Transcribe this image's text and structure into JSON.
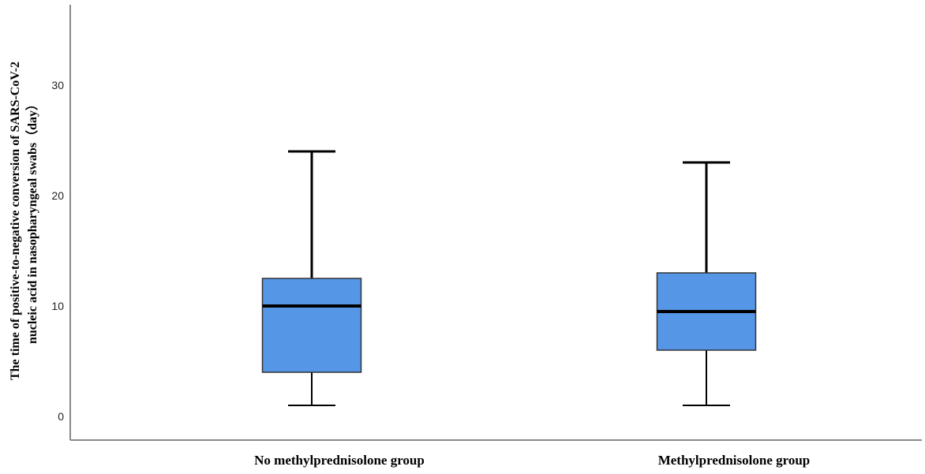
{
  "chart_data": {
    "type": "box",
    "title": "",
    "ylabel_line1": "The time of positive-to-negative conversion of SARS-CoV-2",
    "ylabel_line2": "nucleic acid in nasopharyngeal swabs（day）",
    "xlabel": "",
    "ylim": [
      -2,
      37
    ],
    "yticks": [
      0,
      10,
      20,
      30
    ],
    "yticklabels": [
      "0",
      "10",
      "20",
      "30"
    ],
    "grid": false,
    "categories": [
      "No methylprednisolone group",
      "Methylprednisolone group"
    ],
    "boxes": [
      {
        "min": 1,
        "q1": 4,
        "median": 10,
        "q3": 12.5,
        "max": 24
      },
      {
        "min": 1,
        "q1": 6,
        "median": 9.5,
        "q3": 13,
        "max": 23
      }
    ],
    "colors": {
      "box_fill": "#5596E6",
      "stroke": "#000000",
      "axis": "#888888"
    }
  }
}
